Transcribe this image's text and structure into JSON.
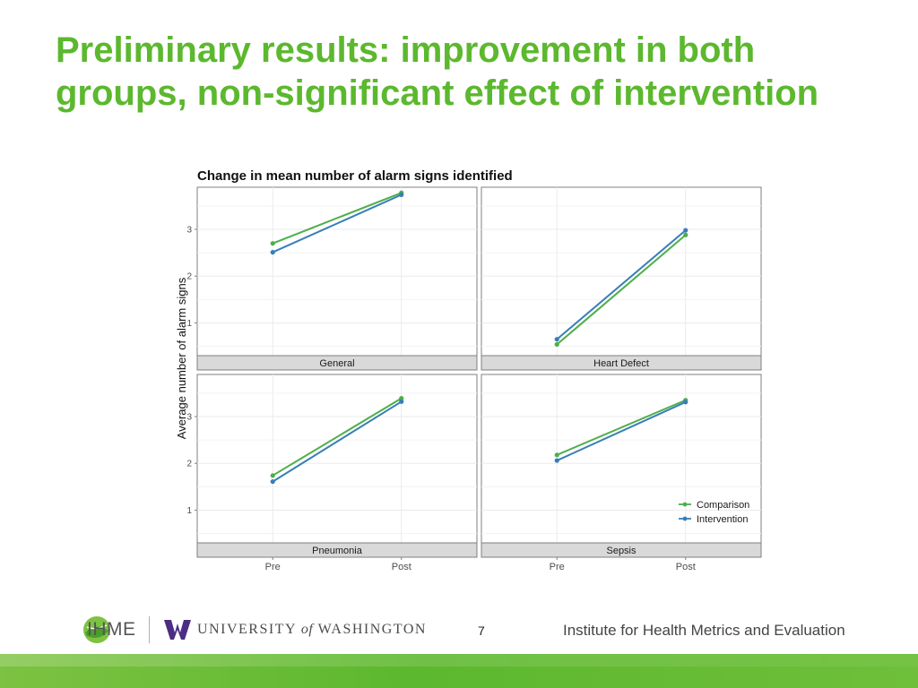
{
  "slide": {
    "title": "Preliminary results: improvement in both groups, non-significant effect of intervention",
    "page_number": "7"
  },
  "footer": {
    "ihme_label": "IHME",
    "uw_label_part1": "UNIVERSITY",
    "uw_label_of": "of",
    "uw_label_part2": "WASHINGTON",
    "institute_name": "Institute for Health Metrics and Evaluation"
  },
  "colors": {
    "title_green": "#5cb82e",
    "comparison": "#4daf4a",
    "intervention": "#377eb8",
    "strip_fill": "#d9d9d9",
    "grid": "#ebebeb"
  },
  "chart_data": {
    "type": "line",
    "title": "Change in mean number of alarm signs identified",
    "ylabel": "Average number of alarm signs",
    "xlabel": "",
    "categories": [
      "Pre",
      "Post"
    ],
    "legend": {
      "placement": "bottom-right",
      "entries": [
        "Comparison",
        "Intervention"
      ]
    },
    "grid": true,
    "facets": [
      {
        "name": "General",
        "ylim": [
          0.3,
          3.9
        ],
        "yticks": [
          1,
          2,
          3
        ],
        "series": [
          {
            "name": "Comparison",
            "values": [
              2.7,
              3.78
            ]
          },
          {
            "name": "Intervention",
            "values": [
              2.51,
              3.74
            ]
          }
        ]
      },
      {
        "name": "Heart Defect",
        "ylim": [
          0.3,
          3.9
        ],
        "yticks": [
          1,
          2,
          3
        ],
        "series": [
          {
            "name": "Comparison",
            "values": [
              0.54,
              2.88
            ]
          },
          {
            "name": "Intervention",
            "values": [
              0.65,
              2.98
            ]
          }
        ]
      },
      {
        "name": "Pneumonia",
        "ylim": [
          0.3,
          3.9
        ],
        "yticks": [
          1,
          2,
          3
        ],
        "series": [
          {
            "name": "Comparison",
            "values": [
              1.74,
              3.39
            ]
          },
          {
            "name": "Intervention",
            "values": [
              1.61,
              3.32
            ]
          }
        ]
      },
      {
        "name": "Sepsis",
        "ylim": [
          0.3,
          3.9
        ],
        "yticks": [
          1,
          2,
          3
        ],
        "series": [
          {
            "name": "Comparison",
            "values": [
              2.18,
              3.35
            ]
          },
          {
            "name": "Intervention",
            "values": [
              2.06,
              3.31
            ]
          }
        ]
      }
    ]
  }
}
